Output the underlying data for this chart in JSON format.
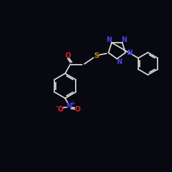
{
  "bg_color": "#080810",
  "bond_color": "#d8d8d8",
  "N_color": "#4444ee",
  "O_color": "#dd2222",
  "S_color": "#cc8800",
  "figsize": [
    2.5,
    2.5
  ],
  "dpi": 100,
  "xlim": [
    0,
    10
  ],
  "ylim": [
    0,
    10
  ]
}
